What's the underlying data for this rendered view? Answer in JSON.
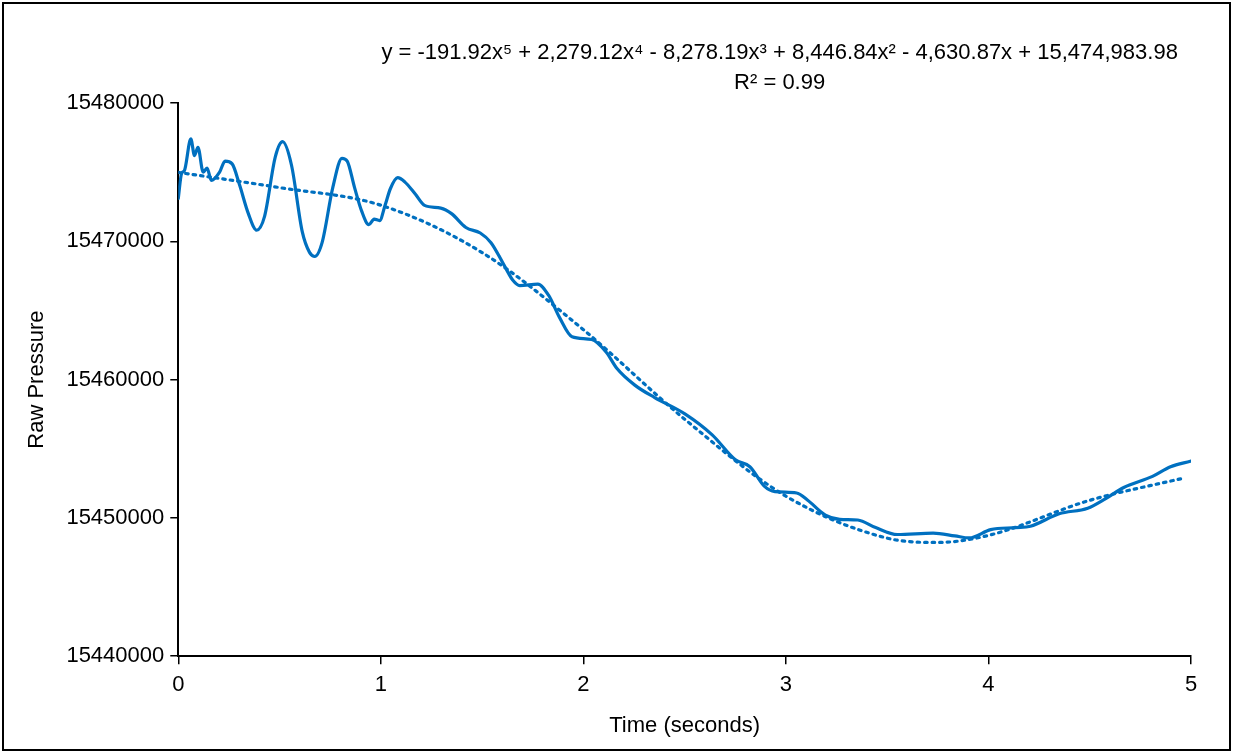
{
  "chart_data": {
    "type": "line",
    "xlabel": "Time (seconds)",
    "ylabel": "Raw Pressure",
    "annotations": [
      "y = -191.92x⁵ + 2,279.12x⁴ - 8,278.19x³ + 8,446.84x² - 4,630.87x + 15,474,983.98",
      "R² = 0.99"
    ],
    "xlim": [
      0,
      5
    ],
    "xticks": [
      0,
      1,
      2,
      3,
      4,
      5
    ],
    "ylim": [
      15440000,
      15480000
    ],
    "yticks": [
      15440000,
      15450000,
      15460000,
      15470000,
      15480000
    ],
    "grid": false,
    "legend": false,
    "marker": "none",
    "series": [
      {
        "color": "#0070c0",
        "line_style": "solid",
        "x": [
          0,
          0.016,
          0.03,
          0.062,
          0.08,
          0.097,
          0.123,
          0.142,
          0.163,
          0.204,
          0.231,
          0.266,
          0.302,
          0.346,
          0.387,
          0.426,
          0.479,
          0.515,
          0.559,
          0.612,
          0.648,
          0.674,
          0.71,
          0.763,
          0.808,
          0.834,
          0.87,
          0.905,
          0.941,
          0.967,
          0.994,
          1.021,
          1.047,
          1.083,
          1.118,
          1.171,
          1.216,
          1.296,
          1.349,
          1.42,
          1.491,
          1.544,
          1.615,
          1.651,
          1.686,
          1.775,
          1.828,
          1.882,
          1.944,
          2.041,
          2.112,
          2.166,
          2.254,
          2.352,
          2.503,
          2.636,
          2.751,
          2.822,
          2.893,
          2.946,
          3.053,
          3.106,
          3.195,
          3.266,
          3.355,
          3.443,
          3.55,
          3.727,
          3.834,
          3.905,
          4.011,
          4.135,
          4.207,
          4.349,
          4.49,
          4.579,
          4.668,
          4.81,
          4.899,
          4.997
        ],
        "values": [
          15473100,
          15474900,
          15475100,
          15477400,
          15476200,
          15476800,
          15475000,
          15475300,
          15474400,
          15475000,
          15475800,
          15475600,
          15474100,
          15472000,
          15470800,
          15471800,
          15476100,
          15477200,
          15475500,
          15470700,
          15469200,
          15468900,
          15469900,
          15473900,
          15476000,
          15475800,
          15473900,
          15472200,
          15471200,
          15471600,
          15471500,
          15472600,
          15473800,
          15474600,
          15474300,
          15473400,
          15472600,
          15472400,
          15472000,
          15471000,
          15470600,
          15469900,
          15468100,
          15467200,
          15466800,
          15466900,
          15466100,
          15464500,
          15463100,
          15462900,
          15462000,
          15460800,
          15459600,
          15458700,
          15457500,
          15456000,
          15454200,
          15453700,
          15452300,
          15451900,
          15451800,
          15451300,
          15450200,
          15449900,
          15449850,
          15449300,
          15448800,
          15448900,
          15448700,
          15448550,
          15449150,
          15449300,
          15449400,
          15450300,
          15450700,
          15451400,
          15452200,
          15453000,
          15453700,
          15454100
        ]
      },
      {
        "type": "line",
        "color": "#0070c0",
        "line_style": "dotted",
        "x": [
          0,
          0.5,
          1,
          1.5,
          2,
          2.5,
          3,
          3.5,
          3.75,
          4,
          4.5,
          4.97
        ],
        "values": [
          15474984,
          15473882,
          15472609,
          15469185,
          15463608,
          15457139,
          15451574,
          15448536,
          15448225,
          15448735,
          15451270,
          15452900
        ]
      }
    ]
  }
}
